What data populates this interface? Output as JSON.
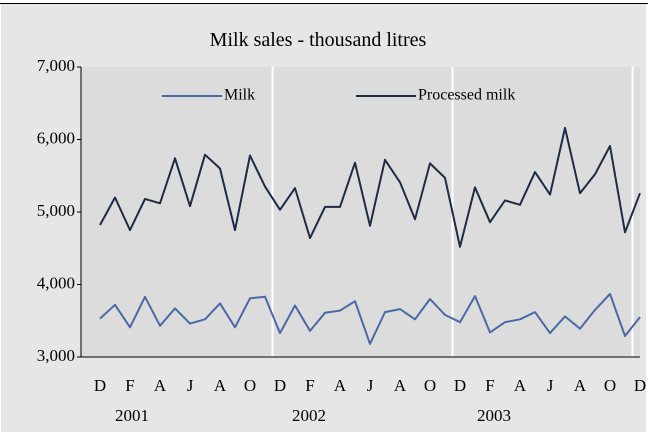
{
  "chart_data": {
    "type": "line",
    "title": "Milk sales - thousand litres",
    "xlabel": "",
    "ylabel": "",
    "ylim": [
      3000,
      7000
    ],
    "yticks": [
      {
        "value": 3000,
        "label": "3,000"
      },
      {
        "value": 4000,
        "label": "4,000"
      },
      {
        "value": 5000,
        "label": "5,000"
      },
      {
        "value": 6000,
        "label": "6,000"
      },
      {
        "value": 7000,
        "label": "7,000"
      }
    ],
    "x_tick_labels": [
      "D",
      "F",
      "A",
      "J",
      "A",
      "O",
      "D",
      "F",
      "A",
      "J",
      "A",
      "O",
      "D",
      "F",
      "A",
      "J",
      "A",
      "O",
      "D"
    ],
    "year_labels": [
      "2001",
      "2002",
      "2003"
    ],
    "grid": "vertical year separators",
    "legend_position": "top",
    "series": [
      {
        "name": "Milk",
        "color": "#4a6aa5",
        "values": [
          3530,
          3720,
          3410,
          3830,
          3430,
          3670,
          3460,
          3520,
          3740,
          3410,
          3810,
          3830,
          3330,
          3710,
          3360,
          3610,
          3640,
          3770,
          3180,
          3620,
          3660,
          3520,
          3800,
          3580,
          3480,
          3840,
          3340,
          3480,
          3520,
          3620,
          3330,
          3560,
          3390,
          3650,
          3870,
          3290,
          3550
        ]
      },
      {
        "name": "Processed milk",
        "color": "#1f2b45",
        "values": [
          4820,
          5200,
          4750,
          5180,
          5120,
          5740,
          5080,
          5790,
          5600,
          4750,
          5780,
          5350,
          5030,
          5330,
          4640,
          5070,
          5070,
          5680,
          4810,
          5720,
          5410,
          4900,
          5670,
          5470,
          4520,
          5340,
          4860,
          5160,
          5100,
          5550,
          5240,
          6160,
          5260,
          5520,
          5910,
          4720,
          5260
        ]
      }
    ],
    "colors": {
      "plot_background": "#dcdcdc",
      "frame_background": "#e6e6e6",
      "separator": "#ffffff"
    }
  }
}
